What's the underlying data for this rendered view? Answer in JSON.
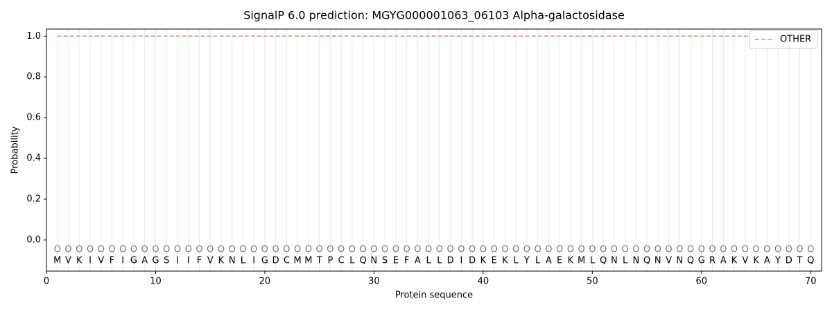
{
  "chart_data": {
    "type": "line",
    "title": "SignalP 6.0 prediction: MGYG000001063_06103 Alpha-galactosidase",
    "x_label": "Protein sequence",
    "y_label": "Probability",
    "sequence": [
      "M",
      "V",
      "K",
      "I",
      "V",
      "F",
      "I",
      "G",
      "A",
      "G",
      "S",
      "I",
      "I",
      "F",
      "V",
      "K",
      "N",
      "L",
      "I",
      "G",
      "D",
      "C",
      "M",
      "M",
      "T",
      "P",
      "C",
      "L",
      "Q",
      "N",
      "S",
      "E",
      "F",
      "A",
      "L",
      "L",
      "D",
      "I",
      "D",
      "K",
      "E",
      "K",
      "L",
      "Y",
      "L",
      "A",
      "E",
      "K",
      "M",
      "L",
      "Q",
      "N",
      "L",
      "N",
      "Q",
      "N",
      "V",
      "N",
      "Q",
      "G",
      "R",
      "A",
      "K",
      "V",
      "K",
      "A",
      "Y",
      "D",
      "T",
      "Q"
    ],
    "predicted_labels": [
      "O",
      "O",
      "O",
      "O",
      "O",
      "O",
      "O",
      "O",
      "O",
      "O",
      "O",
      "O",
      "O",
      "O",
      "O",
      "O",
      "O",
      "O",
      "O",
      "O",
      "O",
      "O",
      "O",
      "O",
      "O",
      "O",
      "O",
      "O",
      "O",
      "O",
      "O",
      "O",
      "O",
      "O",
      "O",
      "O",
      "O",
      "O",
      "O",
      "O",
      "O",
      "O",
      "O",
      "O",
      "O",
      "O",
      "O",
      "O",
      "O",
      "O",
      "O",
      "O",
      "O",
      "O",
      "O",
      "O",
      "O",
      "O",
      "O",
      "O",
      "O",
      "O",
      "O",
      "O",
      "O",
      "O",
      "O",
      "O",
      "O",
      "O"
    ],
    "x": [
      1,
      2,
      3,
      4,
      5,
      6,
      7,
      8,
      9,
      10,
      11,
      12,
      13,
      14,
      15,
      16,
      17,
      18,
      19,
      20,
      21,
      22,
      23,
      24,
      25,
      26,
      27,
      28,
      29,
      30,
      31,
      32,
      33,
      34,
      35,
      36,
      37,
      38,
      39,
      40,
      41,
      42,
      43,
      44,
      45,
      46,
      47,
      48,
      49,
      50,
      51,
      52,
      53,
      54,
      55,
      56,
      57,
      58,
      59,
      60,
      61,
      62,
      63,
      64,
      65,
      66,
      67,
      68,
      69,
      70
    ],
    "series": [
      {
        "name": "OTHER",
        "color": "#f08080",
        "values": [
          1,
          1,
          1,
          1,
          1,
          1,
          1,
          1,
          1,
          1,
          1,
          1,
          1,
          1,
          1,
          1,
          1,
          1,
          1,
          1,
          1,
          1,
          1,
          1,
          1,
          1,
          1,
          1,
          1,
          1,
          1,
          1,
          1,
          1,
          1,
          1,
          1,
          1,
          1,
          1,
          1,
          1,
          1,
          1,
          1,
          1,
          1,
          1,
          1,
          1,
          1,
          1,
          1,
          1,
          1,
          1,
          1,
          1,
          1,
          1,
          1,
          1,
          1,
          1,
          1,
          1,
          1,
          1,
          1,
          1
        ]
      }
    ],
    "xlim": [
      0,
      71
    ],
    "ylim": [
      -0.153,
      1.035
    ],
    "xticks": [
      0,
      10,
      20,
      30,
      40,
      50,
      60,
      70
    ],
    "yticks": [
      {
        "value": 0,
        "label": "0.0"
      },
      0.2,
      0.4,
      0.6,
      0.8,
      {
        "value": 1,
        "label": "1.0"
      }
    ],
    "legend": "upper right"
  }
}
